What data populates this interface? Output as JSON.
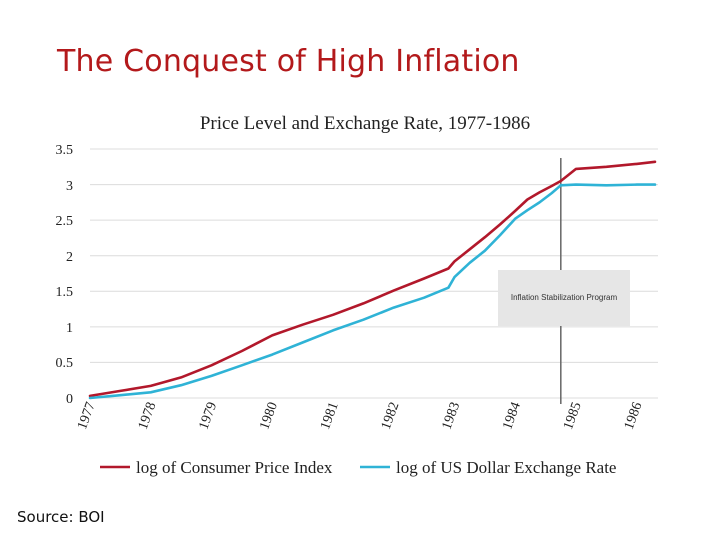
{
  "slide": {
    "title": "The Conquest of High Inflation",
    "source": "Source: BOI"
  },
  "colors": {
    "title": "#b3191b",
    "cpi": "#b2182b",
    "exchange": "#2fb3d6",
    "grid": "#dcdcdc",
    "marker": "#666666",
    "annotation_bg": "#e6e6e6"
  },
  "chart_data": {
    "type": "line",
    "title": "Price Level and Exchange Rate, 1977-1986",
    "xlabel": "",
    "ylabel": "",
    "xlim": [
      1977,
      1986.35
    ],
    "ylim": [
      0,
      3.5
    ],
    "grid": true,
    "y_ticks": [
      "0",
      "0.5",
      "1",
      "1.5",
      "2",
      "2.5",
      "3",
      "3.5"
    ],
    "y_tick_values": [
      0,
      0.5,
      1,
      1.5,
      2,
      2.5,
      3,
      3.5
    ],
    "x_ticks": [
      "1977",
      "1978",
      "1979",
      "1980",
      "1981",
      "1982",
      "1983",
      "1984",
      "1985",
      "1986"
    ],
    "x_tick_values": [
      1977,
      1978,
      1979,
      1980,
      1981,
      1982,
      1983,
      1984,
      1985,
      1986
    ],
    "legend_position": "bottom",
    "annotation": {
      "label": "Inflation Stabilization Program",
      "x": 1984.75
    },
    "series": [
      {
        "name": "log of Consumer Price Index",
        "color_key": "cpi",
        "x": [
          1977.0,
          1977.5,
          1978.0,
          1978.5,
          1979.0,
          1979.5,
          1980.0,
          1980.5,
          1981.0,
          1981.5,
          1982.0,
          1982.5,
          1982.9,
          1983.0,
          1983.25,
          1983.5,
          1983.75,
          1984.0,
          1984.2,
          1984.4,
          1984.6,
          1984.75,
          1985.0,
          1985.5,
          1986.0,
          1986.3
        ],
        "values": [
          0.03,
          0.1,
          0.17,
          0.29,
          0.46,
          0.66,
          0.88,
          1.03,
          1.17,
          1.33,
          1.51,
          1.68,
          1.82,
          1.92,
          2.09,
          2.26,
          2.44,
          2.63,
          2.79,
          2.89,
          2.98,
          3.05,
          3.22,
          3.25,
          3.29,
          3.32
        ]
      },
      {
        "name": "log of US Dollar Exchange Rate",
        "color_key": "exchange",
        "x": [
          1977.0,
          1977.5,
          1978.0,
          1978.5,
          1979.0,
          1979.5,
          1980.0,
          1980.5,
          1981.0,
          1981.5,
          1982.0,
          1982.5,
          1982.9,
          1983.0,
          1983.25,
          1983.5,
          1983.75,
          1984.0,
          1984.2,
          1984.4,
          1984.6,
          1984.75,
          1985.0,
          1985.5,
          1986.0,
          1986.3
        ],
        "values": [
          0.0,
          0.04,
          0.08,
          0.18,
          0.31,
          0.46,
          0.61,
          0.78,
          0.95,
          1.1,
          1.27,
          1.41,
          1.55,
          1.7,
          1.9,
          2.07,
          2.29,
          2.52,
          2.64,
          2.75,
          2.88,
          2.99,
          3.0,
          2.99,
          3.0,
          3.0
        ]
      }
    ]
  }
}
